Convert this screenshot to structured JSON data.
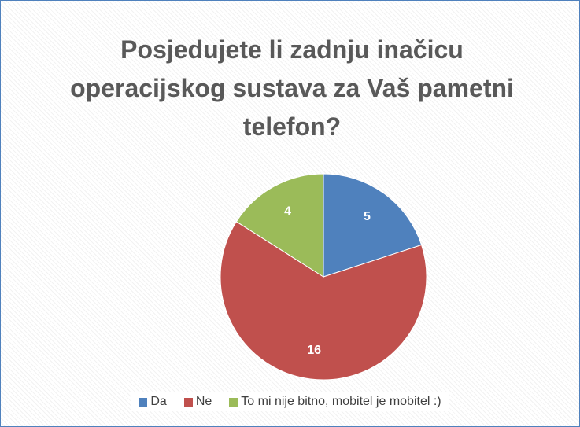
{
  "chart_data": {
    "type": "pie",
    "title": "Posjedujete li zadnju inačicu operacijskog sustava za Vaš pametni telefon?",
    "categories": [
      "Da",
      "Ne",
      "To mi nije bitno, mobitel je mobitel :)"
    ],
    "values": [
      5,
      16,
      4
    ],
    "colors": [
      "#4f81bd",
      "#c0504d",
      "#9bbb59"
    ],
    "legend": "bottom"
  }
}
